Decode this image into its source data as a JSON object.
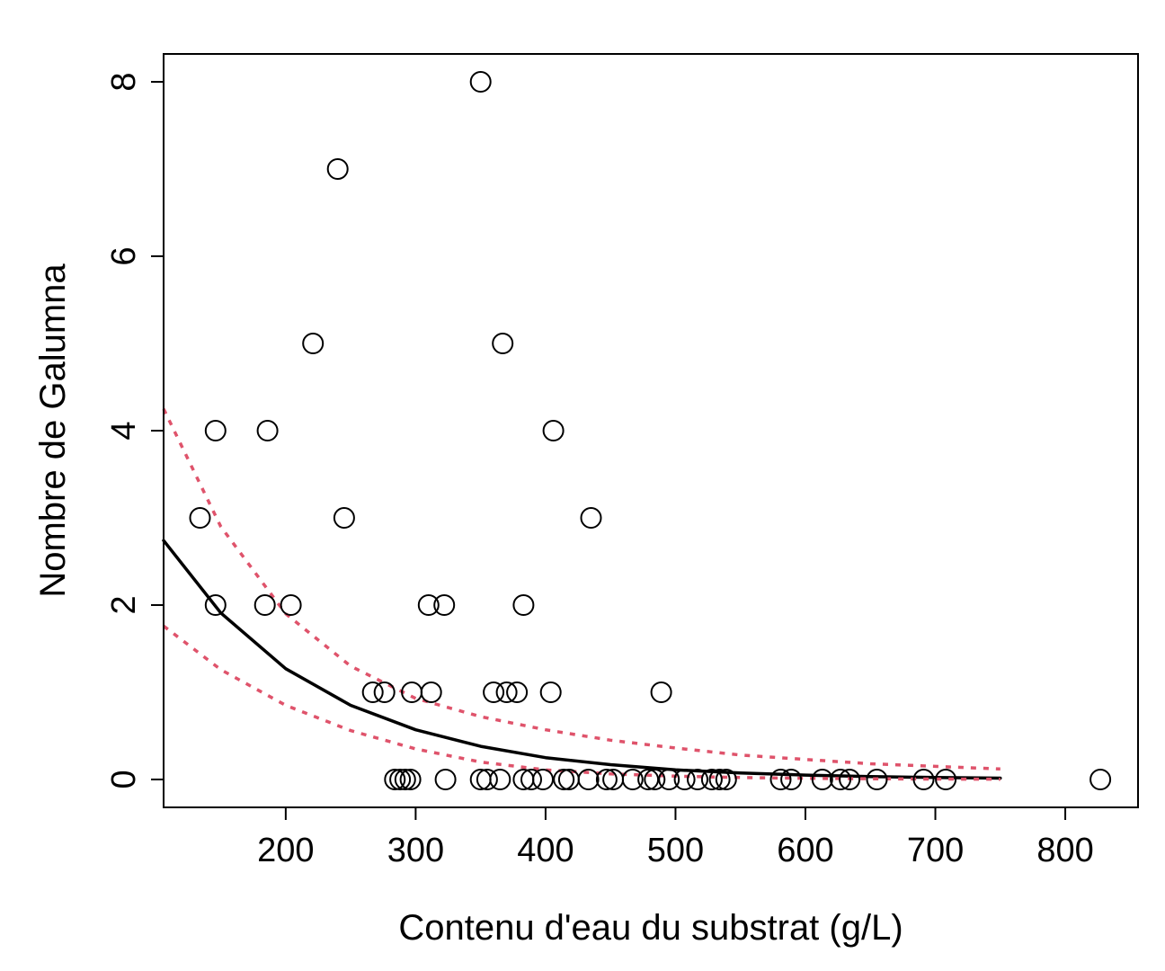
{
  "chart_data": {
    "type": "scatter",
    "title": "",
    "xlabel": "Contenu d'eau du substrat (g/L)",
    "ylabel": "Nombre de Galumna",
    "xlim": [
      106,
      856
    ],
    "ylim": [
      -0.32,
      8.32
    ],
    "x_ticks": [
      200,
      300,
      400,
      500,
      600,
      700,
      800
    ],
    "y_ticks": [
      0,
      2,
      4,
      6,
      8
    ],
    "grid": false,
    "legend": "none",
    "colors": {
      "points": "#000000",
      "fit": "#000000",
      "ci": "#DF536B"
    },
    "series": [
      {
        "type": "scatter",
        "marker": "open-circle",
        "points": [
          [
            350,
            8
          ],
          [
            240,
            7
          ],
          [
            221,
            5
          ],
          [
            367,
            5
          ],
          [
            146,
            4
          ],
          [
            186,
            4
          ],
          [
            406,
            4
          ],
          [
            134,
            3
          ],
          [
            245,
            3
          ],
          [
            435,
            3
          ],
          [
            146,
            2
          ],
          [
            184,
            2
          ],
          [
            204,
            2
          ],
          [
            310,
            2
          ],
          [
            322,
            2
          ],
          [
            383,
            2
          ],
          [
            267,
            1
          ],
          [
            276,
            1
          ],
          [
            297,
            1
          ],
          [
            312,
            1
          ],
          [
            360,
            1
          ],
          [
            370,
            1
          ],
          [
            378,
            1
          ],
          [
            404,
            1
          ],
          [
            489,
            1
          ],
          [
            284,
            0
          ],
          [
            288,
            0
          ],
          [
            292,
            0
          ],
          [
            296,
            0
          ],
          [
            323,
            0
          ],
          [
            350,
            0
          ],
          [
            355,
            0
          ],
          [
            365,
            0
          ],
          [
            383,
            0
          ],
          [
            389,
            0
          ],
          [
            398,
            0
          ],
          [
            414,
            0
          ],
          [
            418,
            0
          ],
          [
            433,
            0
          ],
          [
            447,
            0
          ],
          [
            452,
            0
          ],
          [
            467,
            0
          ],
          [
            479,
            0
          ],
          [
            484,
            0
          ],
          [
            495,
            0
          ],
          [
            507,
            0
          ],
          [
            517,
            0
          ],
          [
            528,
            0
          ],
          [
            534,
            0
          ],
          [
            539,
            0
          ],
          [
            581,
            0
          ],
          [
            589,
            0
          ],
          [
            613,
            0
          ],
          [
            627,
            0
          ],
          [
            634,
            0
          ],
          [
            655,
            0
          ],
          [
            691,
            0
          ],
          [
            708,
            0
          ],
          [
            827,
            0
          ]
        ]
      },
      {
        "type": "line",
        "style": "solid",
        "role": "fit",
        "x": [
          106,
          150,
          200,
          250,
          300,
          350,
          400,
          450,
          500,
          550,
          600,
          650,
          700,
          750
        ],
        "y": [
          2.74,
          1.91,
          1.27,
          0.85,
          0.57,
          0.38,
          0.25,
          0.17,
          0.11,
          0.075,
          0.05,
          0.034,
          0.022,
          0.015
        ]
      },
      {
        "type": "line",
        "style": "dashed",
        "role": "ci-upper",
        "x": [
          106,
          150,
          200,
          250,
          300,
          350,
          400,
          450,
          500,
          550,
          600,
          650,
          700,
          750
        ],
        "y": [
          4.25,
          2.9,
          1.9,
          1.3,
          0.93,
          0.72,
          0.57,
          0.45,
          0.36,
          0.28,
          0.23,
          0.18,
          0.15,
          0.12
        ]
      },
      {
        "type": "line",
        "style": "dashed",
        "role": "ci-lower",
        "x": [
          106,
          150,
          200,
          250,
          300,
          350,
          400,
          450,
          500,
          550,
          600,
          650,
          700,
          750
        ],
        "y": [
          1.76,
          1.26,
          0.85,
          0.56,
          0.35,
          0.2,
          0.11,
          0.065,
          0.038,
          0.022,
          0.013,
          0.008,
          0.005,
          0.003
        ]
      }
    ]
  }
}
